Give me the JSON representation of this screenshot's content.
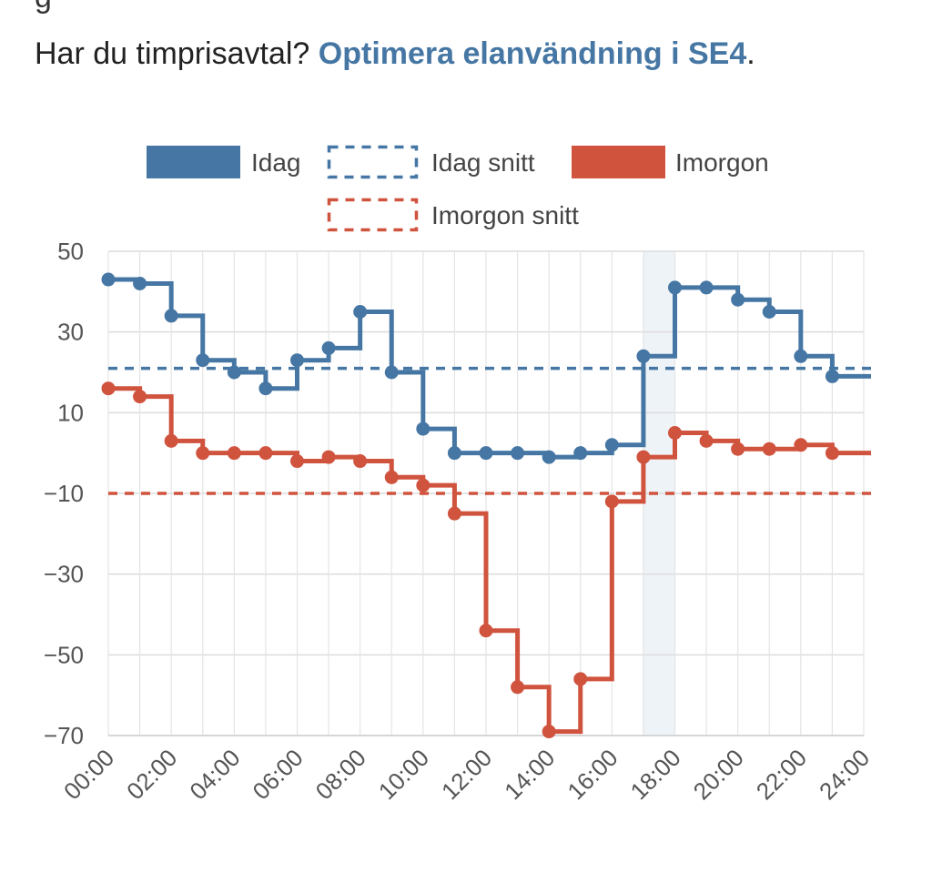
{
  "page": {
    "top_fragment": "g",
    "intro_prefix": "Har du timprisavtal?",
    "intro_link": "Optimera elanvändning i SE4",
    "intro_suffix": "."
  },
  "chart_data": {
    "type": "line",
    "step": true,
    "title": "",
    "xlabel": "",
    "ylabel": "",
    "ylim": [
      -70,
      50
    ],
    "yticks": [
      "50",
      "30",
      "10",
      "−10",
      "−30",
      "−50",
      "−70"
    ],
    "ytick_values": [
      50,
      30,
      10,
      -10,
      -30,
      -50,
      -70
    ],
    "xticks": [
      "00:00",
      "02:00",
      "04:00",
      "06:00",
      "08:00",
      "10:00",
      "12:00",
      "14:00",
      "16:00",
      "18:00",
      "20:00",
      "22:00",
      "24:00"
    ],
    "xlim_hours": [
      0,
      24
    ],
    "highlight_hour": 17,
    "grid": true,
    "legend": [
      {
        "name": "Idag",
        "style": "solid",
        "color": "#4677a4"
      },
      {
        "name": "Idag snitt",
        "style": "dashed",
        "color": "#4677a4"
      },
      {
        "name": "Imorgon",
        "style": "solid",
        "color": "#d0533e"
      },
      {
        "name": "Imorgon snitt",
        "style": "dashed",
        "color": "#d0533e"
      }
    ],
    "series": [
      {
        "name": "Idag",
        "color": "#4677a4",
        "hours": [
          0,
          1,
          2,
          3,
          4,
          5,
          6,
          7,
          8,
          9,
          10,
          11,
          12,
          13,
          14,
          15,
          16,
          17,
          18,
          19,
          20,
          21,
          22,
          23
        ],
        "values": [
          43,
          42,
          34,
          23,
          20,
          16,
          23,
          26,
          35,
          20,
          6,
          0,
          0,
          0,
          -1,
          0,
          2,
          24,
          41,
          41,
          38,
          35,
          24,
          19
        ],
        "average": 21
      },
      {
        "name": "Imorgon",
        "color": "#d0533e",
        "hours": [
          0,
          1,
          2,
          3,
          4,
          5,
          6,
          7,
          8,
          9,
          10,
          11,
          12,
          13,
          14,
          15,
          16,
          17,
          18,
          19,
          20,
          21,
          22,
          23
        ],
        "values": [
          16,
          14,
          3,
          0,
          0,
          0,
          -2,
          -1,
          -2,
          -6,
          -8,
          -15,
          -44,
          -58,
          -69,
          -56,
          -12,
          -1,
          5,
          3,
          1,
          1,
          2,
          0
        ],
        "average": -10
      }
    ]
  }
}
